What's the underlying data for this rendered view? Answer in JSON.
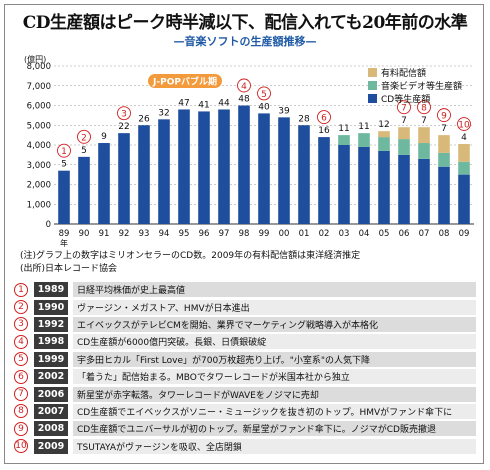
{
  "title": "CD生産額はピーク時半減以下、配信入れても20年前の水準",
  "subtitle": "—音楽ソフトの生産額推移—",
  "colors": {
    "cd": "#1f4e9e",
    "video": "#6fb8a0",
    "download": "#d9b97a",
    "accent": "#d02020",
    "bubble": "#f29a3c"
  },
  "chart_data": {
    "type": "bar",
    "stacked": true,
    "ylabel": "(億円)",
    "ylim": [
      0,
      8000
    ],
    "yticks": [
      0,
      1000,
      2000,
      3000,
      4000,
      5000,
      6000,
      7000,
      8000
    ],
    "categories": [
      "89",
      "90",
      "91",
      "92",
      "93",
      "94",
      "95",
      "96",
      "97",
      "98",
      "99",
      "00",
      "01",
      "02",
      "03",
      "04",
      "05",
      "06",
      "07",
      "08",
      "09"
    ],
    "first_category_note": "年",
    "series": [
      {
        "name": "CD等生産額",
        "color": "#1f4e9e",
        "values": [
          2700,
          3400,
          4100,
          4600,
          5000,
          5300,
          5800,
          5700,
          5800,
          6000,
          5600,
          5400,
          5000,
          4400,
          4000,
          3900,
          3700,
          3500,
          3300,
          2900,
          2500
        ]
      },
      {
        "name": "音楽ビデオ等生産額",
        "color": "#6fb8a0",
        "values": [
          0,
          0,
          0,
          0,
          0,
          0,
          0,
          0,
          0,
          0,
          0,
          0,
          0,
          0,
          500,
          700,
          700,
          800,
          800,
          700,
          650
        ]
      },
      {
        "name": "有料配信額",
        "color": "#d9b97a",
        "values": [
          0,
          0,
          0,
          0,
          0,
          0,
          0,
          0,
          0,
          0,
          0,
          0,
          0,
          0,
          0,
          0,
          300,
          600,
          800,
          900,
          900
        ]
      }
    ],
    "legend_order": [
      "有料配信額",
      "音楽ビデオ等生産額",
      "CD等生産額"
    ],
    "legend_position": "top-right",
    "rank_labels": [
      "5",
      "5",
      "9",
      "22",
      "26",
      "32",
      "47",
      "41",
      "44",
      "48",
      "40",
      "39",
      "28",
      "16",
      "11",
      "11",
      "12",
      "7",
      "7",
      "7",
      "4"
    ],
    "markers": [
      {
        "label": "①",
        "category": "89"
      },
      {
        "label": "②",
        "category": "90"
      },
      {
        "label": "③",
        "category": "92"
      },
      {
        "label": "④",
        "category": "98"
      },
      {
        "label": "⑤",
        "category": "99"
      },
      {
        "label": "⑥",
        "category": "02"
      },
      {
        "label": "⑦",
        "category": "06"
      },
      {
        "label": "⑧",
        "category": "07"
      },
      {
        "label": "⑨",
        "category": "08"
      },
      {
        "label": "⑩",
        "category": "09"
      }
    ],
    "bubble_label": "J-POPバブル期"
  },
  "notes": [
    "(注)グラフ上の数字はミリオンセラーのCD数。2009年の有料配信額は東洋経済推定",
    "(出所)日本レコード協会"
  ],
  "events": [
    {
      "num": "①",
      "year": "1989",
      "text": "日経平均株価が史上最高値"
    },
    {
      "num": "②",
      "year": "1990",
      "text": "ヴァージン・メガストア、HMVが日本進出"
    },
    {
      "num": "③",
      "year": "1992",
      "text": "エイベックスがテレビCMを開始、業界でマーケティング戦略導入が本格化"
    },
    {
      "num": "④",
      "year": "1998",
      "text": "CD生産額が6000億円突破。長銀、日債銀破綻"
    },
    {
      "num": "⑤",
      "year": "1999",
      "text": "宇多田ヒカル「First Love」が700万枚超売り上げ。\"小室系\"の人気下降"
    },
    {
      "num": "⑥",
      "year": "2002",
      "text": "「着うた」配信始まる。MBOでタワーレコードが米国本社から独立"
    },
    {
      "num": "⑦",
      "year": "2006",
      "text": "新星堂が赤字転落。タワーレコードがWAVEをノジマに売却"
    },
    {
      "num": "⑧",
      "year": "2007",
      "text": "CD生産額でエイベックスがソニー・ミュージックを抜き初のトップ。HMVがファンド傘下に"
    },
    {
      "num": "⑨",
      "year": "2008",
      "text": "CD生産額でユニバーサルが初のトップ。新星堂がファンド傘下に。ノジマがCD販売撤退"
    },
    {
      "num": "⑩",
      "year": "2009",
      "text": "TSUTAYAがヴァージンを吸収、全店閉鎖"
    }
  ]
}
